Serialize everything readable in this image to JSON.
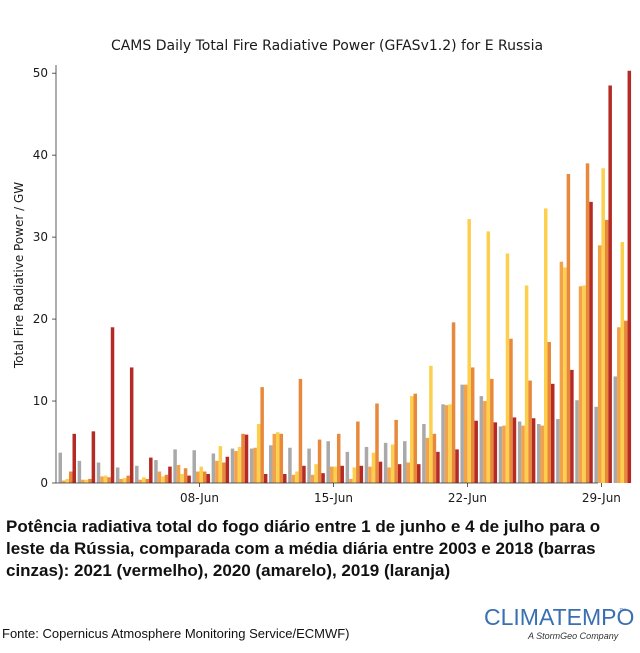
{
  "chart_data": {
    "type": "bar",
    "title": "CAMS Daily Total Fire Radiative Power (GFASv1.2) for E Russia",
    "xlabel": "",
    "ylabel": "Total Fire Radiative Power / GW",
    "ylim": [
      0,
      51
    ],
    "yticks": [
      0,
      10,
      20,
      30,
      40,
      50
    ],
    "xticks": [
      {
        "day": 8,
        "label": "08-Jun"
      },
      {
        "day": 15,
        "label": "15-Jun"
      },
      {
        "day": 22,
        "label": "22-Jun"
      },
      {
        "day": 29,
        "label": "29-Jun"
      }
    ],
    "days": [
      1,
      2,
      3,
      4,
      5,
      6,
      7,
      8,
      9,
      10,
      11,
      12,
      13,
      14,
      15,
      16,
      17,
      18,
      19,
      20,
      21,
      22,
      23,
      24,
      25,
      26,
      27,
      28,
      29,
      30
    ],
    "grid": false,
    "legend": "none",
    "series": [
      {
        "color": "#a9a9a9",
        "values": [
          3.7,
          2.7,
          2.5,
          1.9,
          2.1,
          2.8,
          4.1,
          4.0,
          3.6,
          4.2,
          4.2,
          4.6,
          4.3,
          4.2,
          5.1,
          3.8,
          4.4,
          4.9,
          5.1,
          7.2,
          9.6,
          12.0,
          10.6,
          6.9,
          7.5,
          7.2,
          7.8,
          10.1,
          9.3,
          13.0
        ]
      },
      {
        "color": "#f4a24a",
        "values": [
          0.3,
          0.4,
          0.8,
          0.5,
          0.4,
          1.4,
          2.2,
          1.4,
          2.7,
          3.9,
          4.3,
          6.0,
          1.0,
          1.0,
          2.0,
          0.5,
          2.0,
          1.9,
          2.5,
          5.5,
          9.5,
          12.0,
          10.0,
          7.0,
          7.0,
          7.0,
          27.0,
          24.0,
          29.0,
          19.0
        ]
      },
      {
        "color": "#fcd04e",
        "values": [
          0.5,
          0.4,
          0.9,
          0.6,
          0.7,
          0.8,
          1.1,
          2.0,
          4.5,
          4.4,
          7.2,
          6.2,
          1.4,
          2.3,
          2.0,
          1.9,
          3.7,
          4.7,
          10.6,
          14.3,
          9.6,
          32.2,
          30.7,
          28.0,
          24.1,
          33.5,
          26.3,
          24.1,
          38.4,
          29.4
        ]
      },
      {
        "color": "#e8883a",
        "values": [
          1.4,
          0.5,
          0.7,
          0.9,
          0.5,
          1.0,
          1.8,
          1.4,
          2.5,
          6.0,
          11.7,
          6.0,
          12.7,
          5.3,
          6.0,
          7.5,
          9.7,
          7.7,
          10.9,
          6.0,
          19.6,
          14.1,
          12.7,
          17.6,
          12.5,
          17.2,
          37.7,
          39.0,
          32.1,
          19.8
        ]
      },
      {
        "color": "#b42a25",
        "values": [
          6.0,
          6.3,
          19.0,
          14.1,
          3.1,
          2.0,
          0.9,
          1.1,
          3.2,
          5.9,
          1.1,
          1.1,
          2.1,
          1.2,
          2.1,
          2.1,
          2.6,
          2.3,
          2.3,
          3.8,
          4.1,
          7.6,
          7.4,
          8.0,
          7.9,
          12.1,
          13.8,
          34.3,
          48.5,
          50.3
        ]
      }
    ]
  },
  "caption": "Potência radiativa total do fogo diário entre 1 de junho e 4 de julho para o leste da Rússia, comparada com a média diária entre 2003 e 2018 (barras cinzas): 2021 (vermelho), 2020 (amarelo), 2019 (laranja)",
  "source": "Fonte: Copernicus Atmosphere Monitoring Service/ECMWF)",
  "logo": {
    "word": "CLIMATEMPO",
    "mark": "™",
    "tagline": "A StormGeo Company",
    "color": "#3a6fb0"
  }
}
